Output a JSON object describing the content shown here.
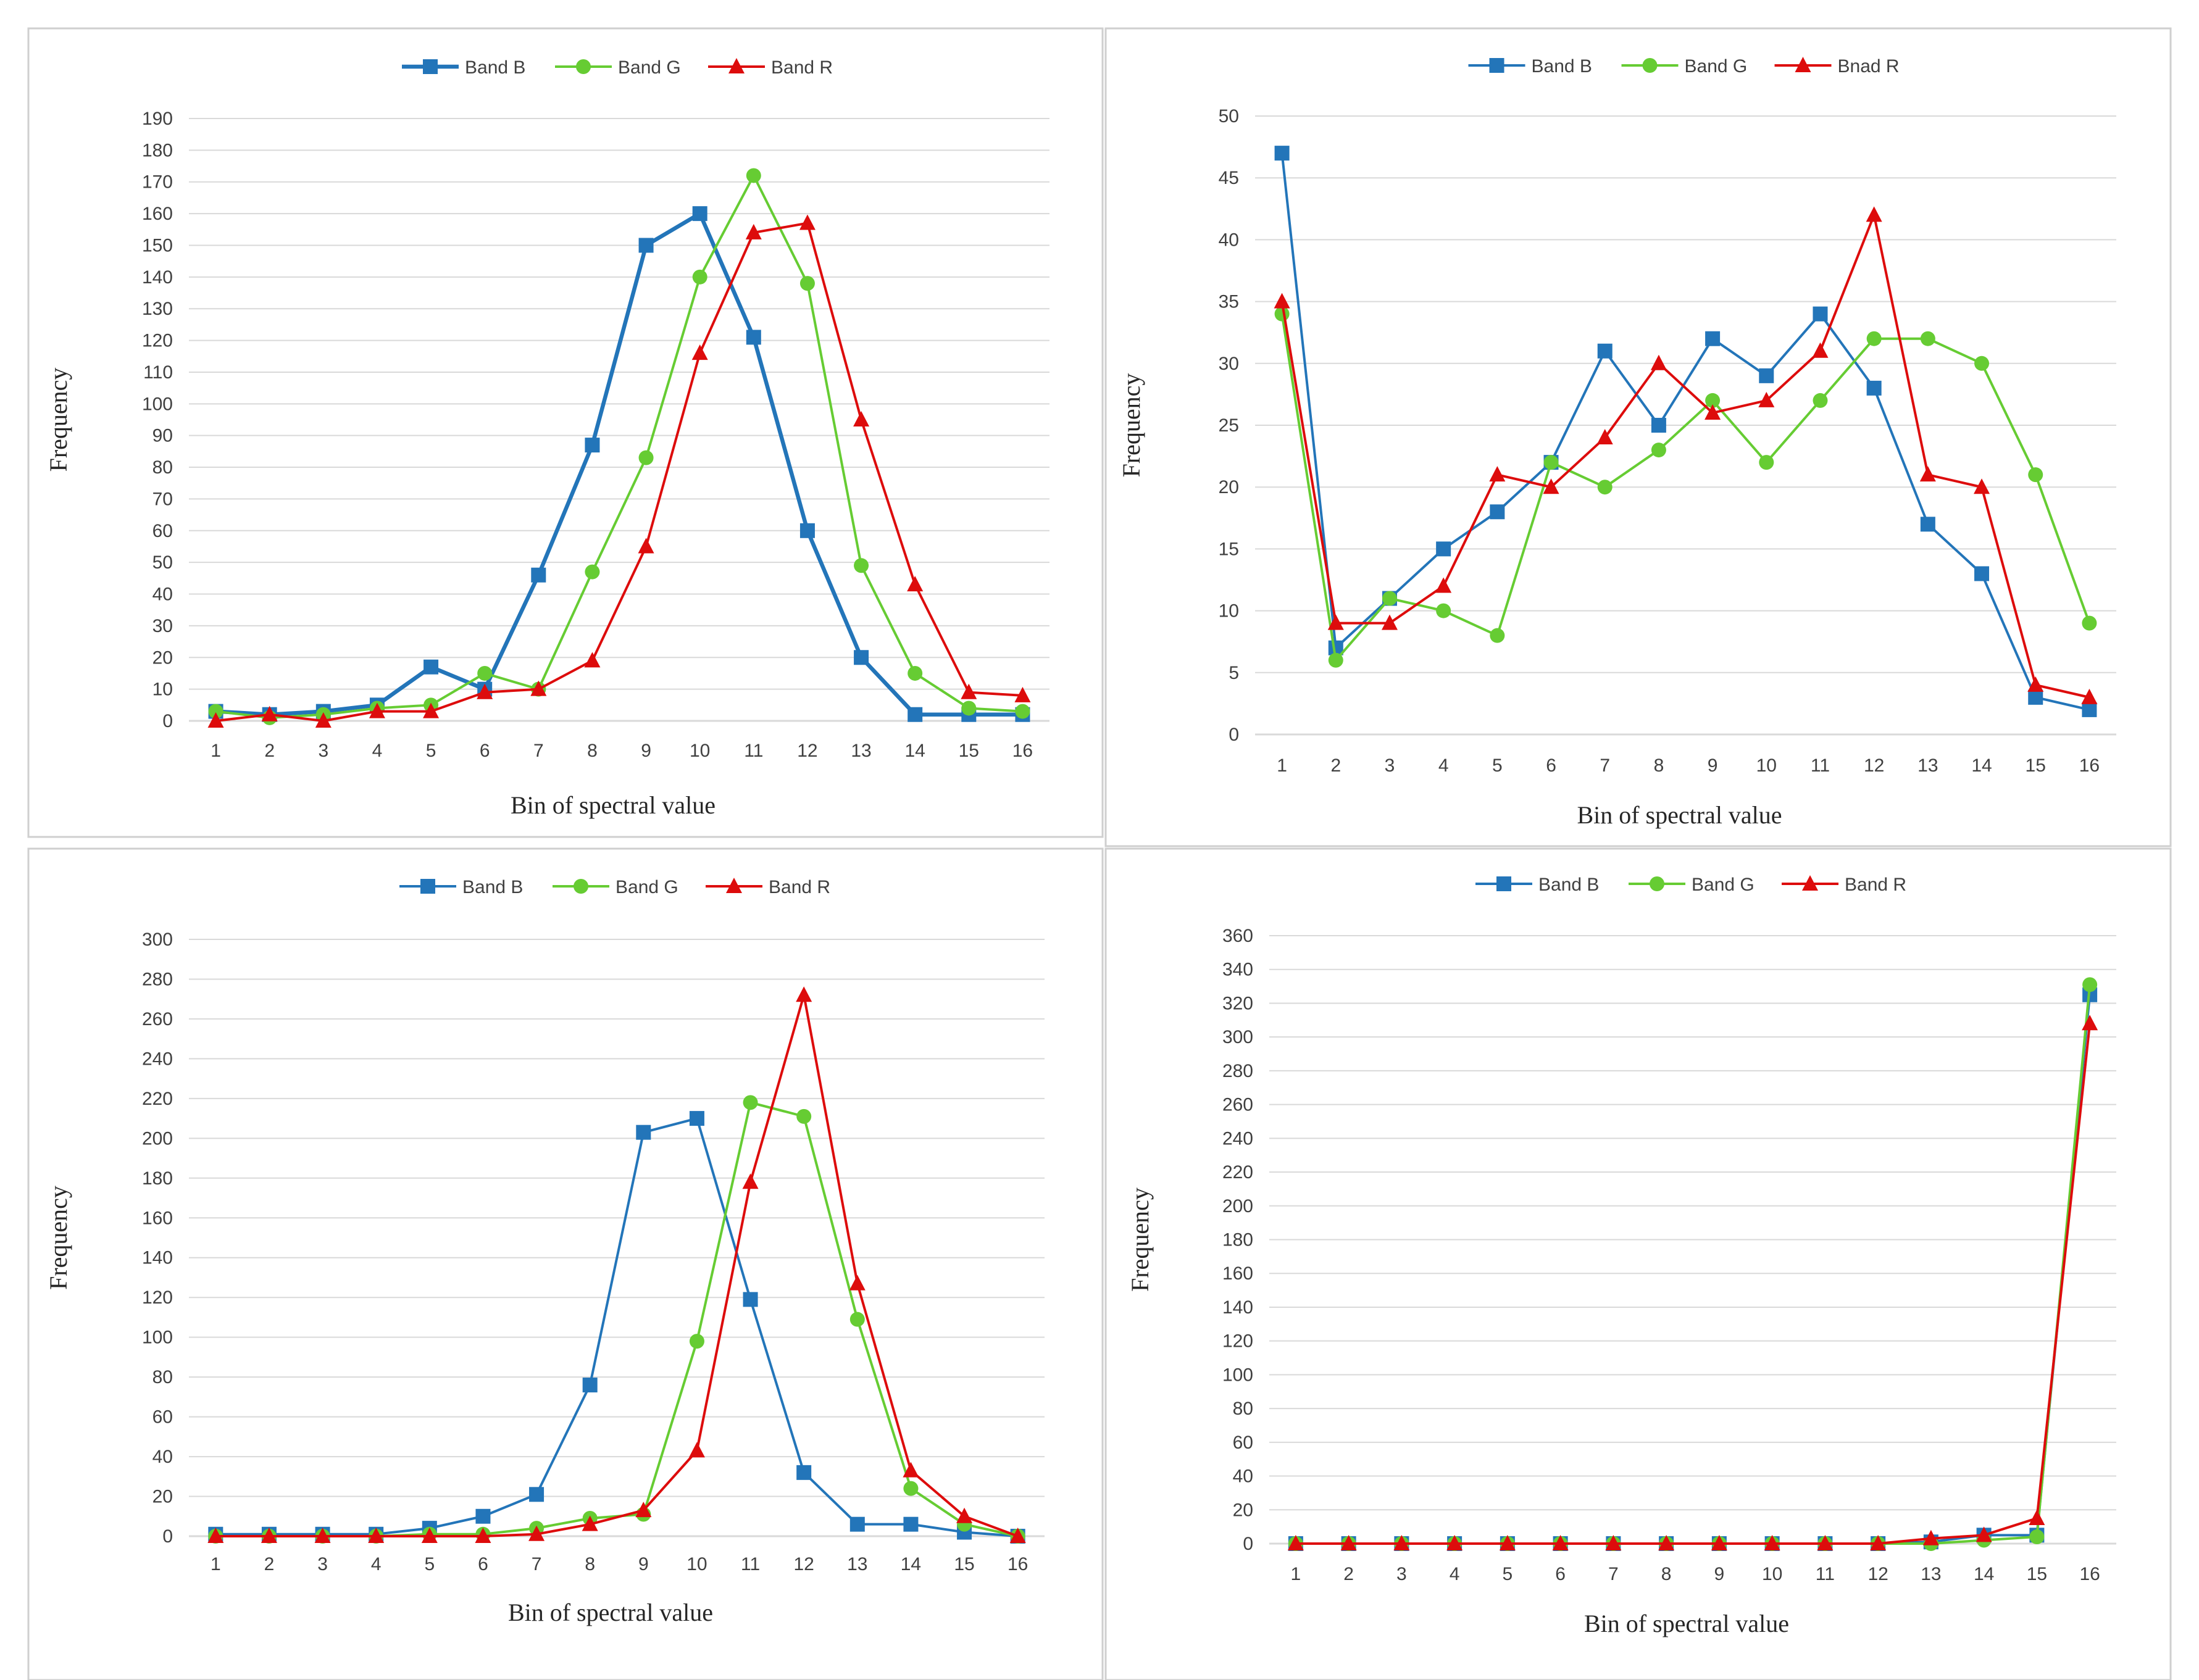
{
  "colors": {
    "band_b": "#2375b9",
    "band_g": "#66cc33",
    "band_r": "#dd0c0c",
    "grid": "#d9d9d9",
    "tick": "#404040",
    "border": "#cfcfcf"
  },
  "chart_data": [
    {
      "type": "line",
      "title": "",
      "xlabel": "Bin  of spectral value",
      "ylabel": "Frequency",
      "legend_position": "top-center",
      "categories": [
        "1",
        "2",
        "3",
        "4",
        "5",
        "6",
        "7",
        "8",
        "9",
        "10",
        "11",
        "12",
        "13",
        "14",
        "15",
        "16"
      ],
      "ylim": [
        0,
        190
      ],
      "ytick_step": 10,
      "series": [
        {
          "name": "Band B",
          "values": [
            3,
            2,
            3,
            5,
            17,
            10,
            46,
            87,
            150,
            160,
            121,
            60,
            20,
            2,
            2,
            2
          ]
        },
        {
          "name": "Band G",
          "values": [
            3,
            1,
            2,
            4,
            5,
            15,
            10,
            47,
            83,
            140,
            172,
            138,
            49,
            15,
            4,
            3
          ]
        },
        {
          "name": "Band R",
          "values": [
            0,
            2,
            0,
            3,
            3,
            9,
            10,
            19,
            55,
            116,
            154,
            157,
            95,
            43,
            9,
            8
          ]
        }
      ]
    },
    {
      "type": "line",
      "title": "",
      "xlabel": "Bin  of spectral value",
      "ylabel": "Frequency",
      "legend_position": "top-center",
      "categories": [
        "1",
        "2",
        "3",
        "4",
        "5",
        "6",
        "7",
        "8",
        "9",
        "10",
        "11",
        "12",
        "13",
        "14",
        "15",
        "16"
      ],
      "ylim": [
        0,
        50
      ],
      "ytick_step": 5,
      "series": [
        {
          "name": "Band B",
          "values": [
            47,
            7,
            11,
            15,
            18,
            22,
            31,
            25,
            32,
            29,
            34,
            28,
            17,
            13,
            3,
            2
          ]
        },
        {
          "name": "Band G",
          "values": [
            34,
            6,
            11,
            10,
            8,
            22,
            20,
            23,
            27,
            22,
            27,
            32,
            32,
            30,
            21,
            9
          ]
        },
        {
          "name": "Bnad R",
          "values": [
            35,
            9,
            9,
            12,
            21,
            20,
            24,
            30,
            26,
            27,
            31,
            42,
            21,
            20,
            4,
            3
          ]
        }
      ]
    },
    {
      "type": "line",
      "title": "",
      "xlabel": "Bin  of spectral value",
      "ylabel": "Frequency",
      "legend_position": "top-center",
      "categories": [
        "1",
        "2",
        "3",
        "4",
        "5",
        "6",
        "7",
        "8",
        "9",
        "10",
        "11",
        "12",
        "13",
        "14",
        "15",
        "16"
      ],
      "ylim": [
        0,
        300
      ],
      "ytick_step": 20,
      "series": [
        {
          "name": "Band B",
          "values": [
            1,
            1,
            1,
            1,
            4,
            10,
            21,
            76,
            203,
            210,
            119,
            32,
            6,
            6,
            2,
            0
          ]
        },
        {
          "name": "Band G",
          "values": [
            0,
            0,
            0,
            0,
            1,
            1,
            4,
            9,
            11,
            98,
            218,
            211,
            109,
            24,
            6,
            0
          ]
        },
        {
          "name": "Band R",
          "values": [
            0,
            0,
            0,
            0,
            0,
            0,
            1,
            6,
            13,
            43,
            178,
            272,
            127,
            33,
            10,
            0
          ]
        }
      ]
    },
    {
      "type": "line",
      "title": "",
      "xlabel": "Bin  of spectral value",
      "ylabel": "Frequency",
      "legend_position": "top-center",
      "categories": [
        "1",
        "2",
        "3",
        "4",
        "5",
        "6",
        "7",
        "8",
        "9",
        "10",
        "11",
        "12",
        "13",
        "14",
        "15",
        "16"
      ],
      "ylim": [
        0,
        360
      ],
      "ytick_step": 20,
      "series": [
        {
          "name": "Band B",
          "values": [
            0,
            0,
            0,
            0,
            0,
            0,
            0,
            0,
            0,
            0,
            0,
            0,
            1,
            5,
            5,
            325
          ]
        },
        {
          "name": "Band G",
          "values": [
            0,
            0,
            0,
            0,
            0,
            0,
            0,
            0,
            0,
            0,
            0,
            0,
            0,
            2,
            4,
            331
          ]
        },
        {
          "name": "Band R",
          "values": [
            0,
            0,
            0,
            0,
            0,
            0,
            0,
            0,
            0,
            0,
            0,
            0,
            3,
            5,
            15,
            308
          ]
        }
      ]
    }
  ]
}
